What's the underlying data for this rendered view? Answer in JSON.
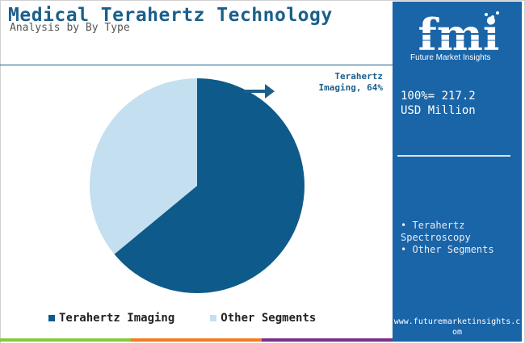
{
  "header": {
    "title": "Medical Terahertz Technology",
    "subtitle": "Analysis by By Type"
  },
  "chart_data": {
    "type": "pie",
    "categories": [
      "Terahertz Imaging",
      "Other Segments"
    ],
    "values": [
      64,
      36
    ],
    "colors": [
      "#0e5a8a",
      "#c4dff0"
    ],
    "title": "",
    "legend_position": "bottom"
  },
  "callout": {
    "line1": "Terahertz",
    "line2": "Imaging, 64%"
  },
  "legend": {
    "items": [
      {
        "label": "Terahertz Imaging",
        "color": "#0e5a8a"
      },
      {
        "label": "Other Segments",
        "color": "#c4dff0"
      }
    ]
  },
  "side_panel": {
    "logo_text": "fmi",
    "logo_caption": "Future Market Insights",
    "total_line1": "100%= 217.2",
    "total_line2": "USD Million",
    "list": [
      "Terahertz Spectroscopy",
      "Other Segments"
    ],
    "url": "www.futuremarketinsights.com",
    "bg_color": "#1a64a8"
  },
  "footer_bar_colors": [
    "#8cc63e",
    "#f47b20",
    "#7b2d8b"
  ]
}
